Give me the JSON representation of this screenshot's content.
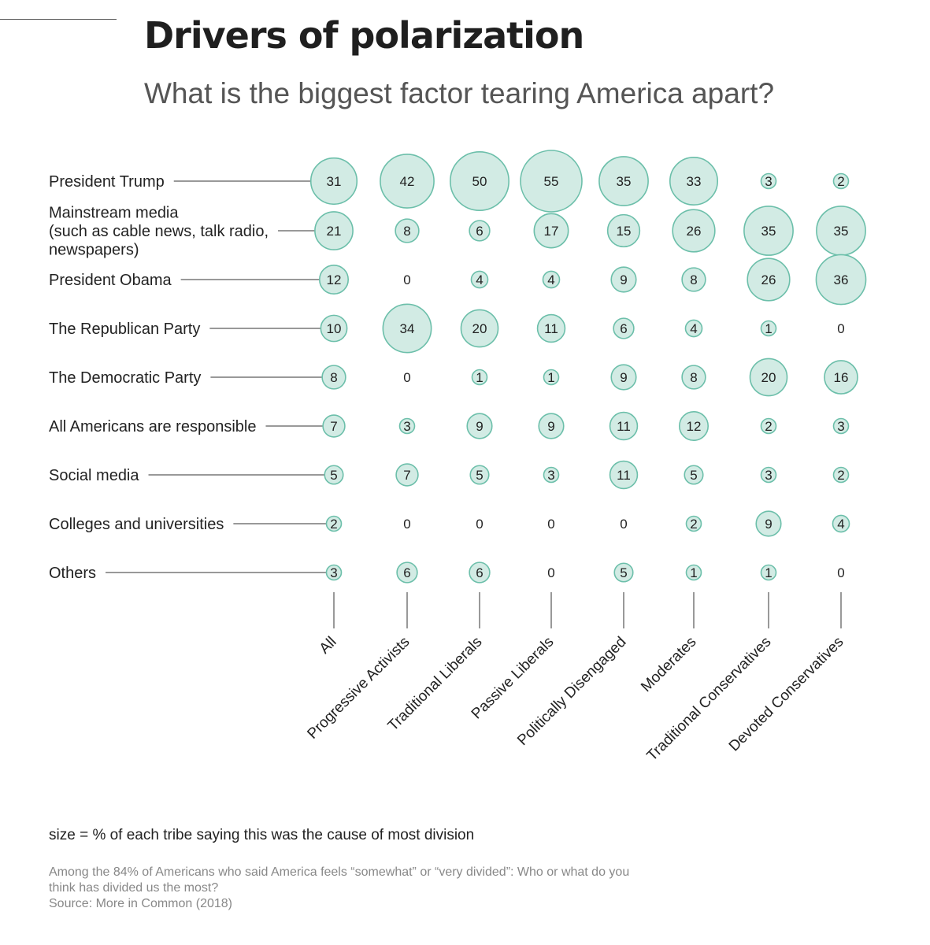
{
  "title": "Drivers of polarization",
  "subtitle": "What is the biggest factor tearing America apart?",
  "chart_data": {
    "type": "bubble-matrix",
    "columns": [
      "All",
      "Progressive Activists",
      "Traditional Liberals",
      "Passive Liberals",
      "Politically Disengaged",
      "Moderates",
      "Traditional Conservatives",
      "Devoted Conservatives"
    ],
    "rows": [
      {
        "label_lines": [
          "President Trump"
        ],
        "values": [
          31,
          42,
          50,
          55,
          35,
          33,
          3,
          2
        ]
      },
      {
        "label_lines": [
          "Mainstream media",
          "(such as cable news, talk radio,",
          "newspapers)"
        ],
        "values": [
          21,
          8,
          6,
          17,
          15,
          26,
          35,
          35
        ]
      },
      {
        "label_lines": [
          "President Obama"
        ],
        "values": [
          12,
          0,
          4,
          4,
          9,
          8,
          26,
          36
        ]
      },
      {
        "label_lines": [
          "The Republican Party"
        ],
        "values": [
          10,
          34,
          20,
          11,
          6,
          4,
          1,
          0
        ]
      },
      {
        "label_lines": [
          "The Democratic Party"
        ],
        "values": [
          8,
          0,
          1,
          1,
          9,
          8,
          20,
          16
        ]
      },
      {
        "label_lines": [
          "All Americans are responsible"
        ],
        "values": [
          7,
          3,
          9,
          9,
          11,
          12,
          2,
          3
        ]
      },
      {
        "label_lines": [
          "Social media"
        ],
        "values": [
          5,
          7,
          5,
          3,
          11,
          5,
          3,
          2
        ]
      },
      {
        "label_lines": [
          "Colleges and universities"
        ],
        "values": [
          2,
          0,
          0,
          0,
          0,
          2,
          9,
          4
        ]
      },
      {
        "label_lines": [
          "Others"
        ],
        "values": [
          3,
          6,
          6,
          0,
          5,
          1,
          1,
          0
        ]
      }
    ],
    "unit": "% of each tribe",
    "size_encoding": "bubble area proportional to value",
    "colors": {
      "fill": "#d2ebe4",
      "stroke": "#6cbfaa",
      "line": "#333333"
    }
  },
  "legend_note": "size = % of each tribe saying this was the cause of most division",
  "footnote_lines": [
    "Among the 84% of Americans who said America feels “somewhat” or “very divided”: Who or what do you",
    "think has divided us the most?",
    "Source: More in Common (2018)"
  ]
}
